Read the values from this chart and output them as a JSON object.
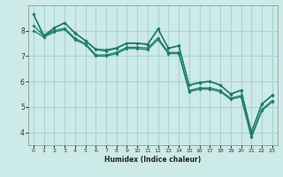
{
  "xlabel": "Humidex (Indice chaleur)",
  "bg_color": "#cceae8",
  "grid_color": "#aad4d0",
  "line_color": "#1e7a6e",
  "xlim": [
    -0.5,
    23.5
  ],
  "ylim": [
    3.5,
    9.0
  ],
  "yticks": [
    4,
    5,
    6,
    7,
    8
  ],
  "xticks": [
    0,
    1,
    2,
    3,
    4,
    5,
    6,
    7,
    8,
    9,
    10,
    11,
    12,
    13,
    14,
    15,
    16,
    17,
    18,
    19,
    20,
    21,
    22,
    23
  ],
  "series": [
    [
      8.65,
      7.75,
      8.1,
      8.3,
      7.9,
      7.6,
      7.25,
      7.2,
      7.3,
      7.5,
      7.5,
      7.45,
      8.05,
      7.3,
      7.4,
      5.85,
      5.95,
      6.0,
      5.85,
      5.5,
      5.65,
      4.0,
      5.1,
      5.45
    ],
    [
      8.65,
      7.82,
      8.12,
      8.32,
      7.92,
      7.62,
      7.28,
      7.25,
      7.33,
      7.52,
      7.52,
      7.48,
      8.08,
      7.32,
      7.42,
      5.87,
      5.97,
      6.02,
      5.87,
      5.52,
      5.67,
      4.02,
      5.12,
      5.47
    ],
    [
      8.2,
      7.8,
      8.0,
      8.1,
      7.7,
      7.5,
      7.05,
      7.05,
      7.15,
      7.35,
      7.35,
      7.32,
      7.72,
      7.15,
      7.15,
      5.65,
      5.75,
      5.75,
      5.65,
      5.35,
      5.45,
      3.85,
      4.9,
      5.25
    ],
    [
      8.0,
      7.75,
      7.95,
      8.05,
      7.65,
      7.45,
      7.0,
      7.0,
      7.1,
      7.3,
      7.3,
      7.25,
      7.65,
      7.1,
      7.1,
      5.6,
      5.7,
      5.7,
      5.6,
      5.3,
      5.4,
      3.8,
      4.85,
      5.2
    ]
  ]
}
